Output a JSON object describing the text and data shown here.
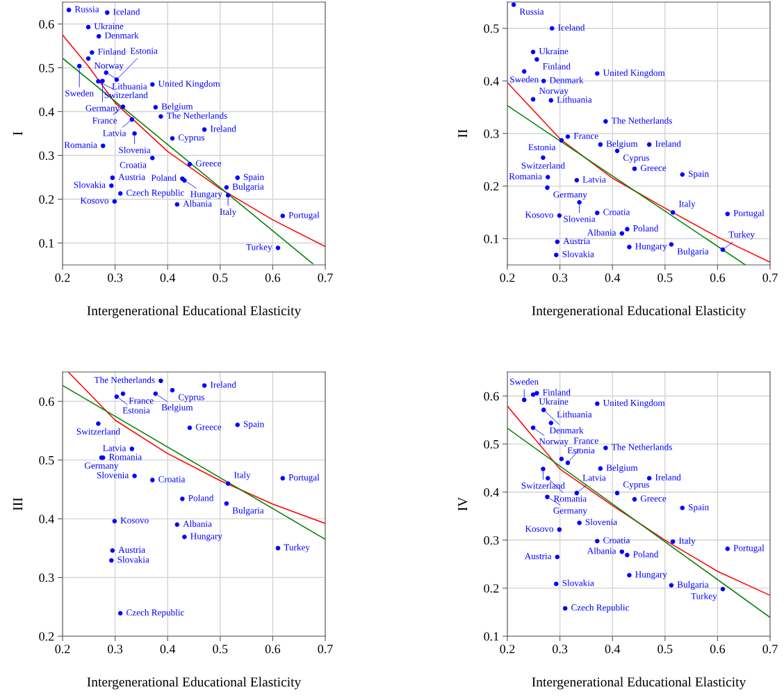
{
  "chart_data": [
    {
      "type": "scatter",
      "ylabel": "I",
      "xlabel": "Intergenerational Educational Elasticity",
      "xlim": [
        0.2,
        0.7
      ],
      "xticks": [
        0.2,
        0.3,
        0.4,
        0.5,
        0.6,
        0.7
      ],
      "ylim": [
        0.05,
        0.65
      ],
      "yticks": [
        0.1,
        0.2,
        0.3,
        0.4,
        0.5,
        0.6
      ],
      "grid": true,
      "series": [
        {
          "marker": "circle",
          "color": "#0000ff",
          "x": [
            0.212,
            0.285,
            0.249,
            0.269,
            0.256,
            0.249,
            0.232,
            0.283,
            0.268,
            0.276,
            0.303,
            0.371,
            0.315,
            0.377,
            0.387,
            0.332,
            0.47,
            0.337,
            0.409,
            0.277,
            0.371,
            0.442,
            0.295,
            0.293,
            0.31,
            0.299,
            0.428,
            0.432,
            0.418,
            0.533,
            0.512,
            0.515,
            0.619,
            0.61
          ],
          "values": [
            0.632,
            0.626,
            0.593,
            0.572,
            0.535,
            0.521,
            0.504,
            0.489,
            0.469,
            0.47,
            0.473,
            0.462,
            0.411,
            0.41,
            0.389,
            0.382,
            0.359,
            0.35,
            0.339,
            0.322,
            0.294,
            0.28,
            0.249,
            0.231,
            0.213,
            0.195,
            0.247,
            0.243,
            0.188,
            0.249,
            0.227,
            0.209,
            0.162,
            0.089
          ]
        },
        {
          "type": "line",
          "color": "#ff0000",
          "x": [
            0.2,
            0.25,
            0.3,
            0.4,
            0.5,
            0.6,
            0.7
          ],
          "values": [
            0.575,
            0.502,
            0.42,
            0.309,
            0.224,
            0.153,
            0.092
          ]
        },
        {
          "type": "line",
          "color": "#008000",
          "x": [
            0.2,
            0.676
          ],
          "values": [
            0.522,
            0.053
          ]
        }
      ],
      "annotations": [
        {
          "text": "Russia",
          "x": 0.212,
          "y": 0.632
        },
        {
          "text": "Iceland",
          "x": 0.285,
          "y": 0.626
        },
        {
          "text": "Ukraine",
          "x": 0.249,
          "y": 0.593
        },
        {
          "text": "Denmark",
          "x": 0.269,
          "y": 0.572
        },
        {
          "text": "Finland",
          "x": 0.256,
          "y": 0.535
        },
        {
          "text": "Norway",
          "x": 0.249,
          "y": 0.521
        },
        {
          "text": "Sweden",
          "x": 0.232,
          "y": 0.504
        },
        {
          "text": "Lithuania",
          "x": 0.283,
          "y": 0.489
        },
        {
          "text": "Switzerland",
          "x": 0.268,
          "y": 0.469
        },
        {
          "text": "Germany",
          "x": 0.276,
          "y": 0.47
        },
        {
          "text": "Estonia",
          "x": 0.303,
          "y": 0.473
        },
        {
          "text": "United Kingdom",
          "x": 0.371,
          "y": 0.462
        },
        {
          "text": "France",
          "x": 0.315,
          "y": 0.411
        },
        {
          "text": "Belgium",
          "x": 0.377,
          "y": 0.41
        },
        {
          "text": "The Netherlands",
          "x": 0.387,
          "y": 0.389
        },
        {
          "text": "Latvia",
          "x": 0.332,
          "y": 0.382
        },
        {
          "text": "Ireland",
          "x": 0.47,
          "y": 0.359
        },
        {
          "text": "Slovenia",
          "x": 0.337,
          "y": 0.35
        },
        {
          "text": "Cyprus",
          "x": 0.409,
          "y": 0.339
        },
        {
          "text": "Romania",
          "x": 0.277,
          "y": 0.322
        },
        {
          "text": "Croatia",
          "x": 0.371,
          "y": 0.294
        },
        {
          "text": "Greece",
          "x": 0.442,
          "y": 0.28
        },
        {
          "text": "Austria",
          "x": 0.295,
          "y": 0.249
        },
        {
          "text": "Slovakia",
          "x": 0.293,
          "y": 0.231
        },
        {
          "text": "Czech Republic",
          "x": 0.31,
          "y": 0.213
        },
        {
          "text": "Kosovo",
          "x": 0.299,
          "y": 0.195
        },
        {
          "text": "Poland",
          "x": 0.428,
          "y": 0.247
        },
        {
          "text": "Hungary",
          "x": 0.432,
          "y": 0.243
        },
        {
          "text": "Albania",
          "x": 0.418,
          "y": 0.188
        },
        {
          "text": "Spain",
          "x": 0.533,
          "y": 0.249
        },
        {
          "text": "Bulgaria",
          "x": 0.512,
          "y": 0.227
        },
        {
          "text": "Italy",
          "x": 0.515,
          "y": 0.209
        },
        {
          "text": "Portugal",
          "x": 0.619,
          "y": 0.162
        },
        {
          "text": "Turkey",
          "x": 0.61,
          "y": 0.089
        }
      ]
    },
    {
      "type": "scatter",
      "ylabel": "II",
      "xlabel": "Intergenerational Educational Elasticity",
      "xlim": [
        0.2,
        0.7
      ],
      "xticks": [
        0.2,
        0.3,
        0.4,
        0.5,
        0.6,
        0.7
      ],
      "ylim": [
        0.05,
        0.55
      ],
      "yticks": [
        0.1,
        0.2,
        0.3,
        0.4,
        0.5
      ],
      "grid": true,
      "series": [
        {
          "marker": "circle",
          "color": "#0000ff",
          "x": [
            0.212,
            0.285,
            0.249,
            0.256,
            0.232,
            0.371,
            0.269,
            0.249,
            0.283,
            0.387,
            0.315,
            0.303,
            0.377,
            0.47,
            0.409,
            0.268,
            0.442,
            0.533,
            0.277,
            0.332,
            0.276,
            0.337,
            0.515,
            0.619,
            0.299,
            0.371,
            0.428,
            0.418,
            0.295,
            0.432,
            0.512,
            0.61,
            0.293
          ],
          "values": [
            0.545,
            0.5,
            0.455,
            0.441,
            0.418,
            0.414,
            0.4,
            0.365,
            0.363,
            0.323,
            0.294,
            0.287,
            0.279,
            0.279,
            0.267,
            0.254,
            0.233,
            0.222,
            0.217,
            0.211,
            0.197,
            0.169,
            0.15,
            0.147,
            0.144,
            0.149,
            0.118,
            0.11,
            0.094,
            0.084,
            0.089,
            0.079,
            0.069
          ]
        },
        {
          "type": "line",
          "color": "#ff0000",
          "x": [
            0.2,
            0.3,
            0.4,
            0.5,
            0.6,
            0.7
          ],
          "values": [
            0.397,
            0.29,
            0.215,
            0.158,
            0.103,
            0.055
          ]
        },
        {
          "type": "line",
          "color": "#008000",
          "x": [
            0.2,
            0.653
          ],
          "values": [
            0.353,
            0.05
          ]
        }
      ],
      "annotations": [
        {
          "text": "Russia",
          "x": 0.212,
          "y": 0.545
        },
        {
          "text": "Iceland",
          "x": 0.285,
          "y": 0.5
        },
        {
          "text": "Ukraine",
          "x": 0.249,
          "y": 0.455
        },
        {
          "text": "Finland",
          "x": 0.256,
          "y": 0.441
        },
        {
          "text": "Sweden",
          "x": 0.232,
          "y": 0.418
        },
        {
          "text": "United Kingdom",
          "x": 0.371,
          "y": 0.414
        },
        {
          "text": "Denmark",
          "x": 0.269,
          "y": 0.4
        },
        {
          "text": "Norway",
          "x": 0.249,
          "y": 0.365
        },
        {
          "text": "Lithuania",
          "x": 0.283,
          "y": 0.363
        },
        {
          "text": "The Netherlands",
          "x": 0.387,
          "y": 0.323
        },
        {
          "text": "France",
          "x": 0.315,
          "y": 0.294
        },
        {
          "text": "Estonia",
          "x": 0.303,
          "y": 0.287
        },
        {
          "text": "Belgium",
          "x": 0.377,
          "y": 0.279
        },
        {
          "text": "Ireland",
          "x": 0.47,
          "y": 0.279
        },
        {
          "text": "Cyprus",
          "x": 0.409,
          "y": 0.267
        },
        {
          "text": "Switzerland",
          "x": 0.268,
          "y": 0.254
        },
        {
          "text": "Greece",
          "x": 0.442,
          "y": 0.233
        },
        {
          "text": "Spain",
          "x": 0.533,
          "y": 0.222
        },
        {
          "text": "Romania",
          "x": 0.277,
          "y": 0.217
        },
        {
          "text": "Latvia",
          "x": 0.332,
          "y": 0.211
        },
        {
          "text": "Germany",
          "x": 0.276,
          "y": 0.197
        },
        {
          "text": "Slovenia",
          "x": 0.337,
          "y": 0.169
        },
        {
          "text": "Italy",
          "x": 0.515,
          "y": 0.15
        },
        {
          "text": "Portugal",
          "x": 0.619,
          "y": 0.147
        },
        {
          "text": "Kosovo",
          "x": 0.299,
          "y": 0.144
        },
        {
          "text": "Croatia",
          "x": 0.371,
          "y": 0.149
        },
        {
          "text": "Poland",
          "x": 0.428,
          "y": 0.118
        },
        {
          "text": "Albania",
          "x": 0.418,
          "y": 0.11
        },
        {
          "text": "Austria",
          "x": 0.295,
          "y": 0.094
        },
        {
          "text": "Hungary",
          "x": 0.432,
          "y": 0.084
        },
        {
          "text": "Bulgaria",
          "x": 0.512,
          "y": 0.089
        },
        {
          "text": "Turkey",
          "x": 0.61,
          "y": 0.079
        },
        {
          "text": "Slovakia",
          "x": 0.293,
          "y": 0.069
        }
      ]
    },
    {
      "type": "scatter",
      "ylabel": "III",
      "xlabel": "Intergenerational Educational Elasticity",
      "xlim": [
        0.2,
        0.7
      ],
      "xticks": [
        0.2,
        0.3,
        0.4,
        0.5,
        0.6,
        0.7
      ],
      "ylim": [
        0.2,
        0.65
      ],
      "yticks": [
        0.2,
        0.3,
        0.4,
        0.5,
        0.6
      ],
      "grid": true,
      "series": [
        {
          "marker": "circle",
          "color": "#0000ff",
          "x": [
            0.387,
            0.47,
            0.409,
            0.315,
            0.377,
            0.303,
            0.268,
            0.442,
            0.533,
            0.332,
            0.277,
            0.274,
            0.337,
            0.371,
            0.515,
            0.619,
            0.428,
            0.512,
            0.299,
            0.418,
            0.432,
            0.295,
            0.293,
            0.61,
            0.31
          ],
          "values": [
            0.635,
            0.627,
            0.619,
            0.613,
            0.613,
            0.608,
            0.562,
            0.555,
            0.56,
            0.519,
            0.504,
            0.504,
            0.473,
            0.466,
            0.46,
            0.469,
            0.434,
            0.426,
            0.396,
            0.39,
            0.369,
            0.346,
            0.329,
            0.35,
            0.239
          ]
        },
        {
          "type": "line",
          "color": "#ff0000",
          "x": [
            0.211,
            0.3,
            0.4,
            0.5,
            0.6,
            0.7
          ],
          "values": [
            0.65,
            0.568,
            0.511,
            0.465,
            0.425,
            0.392
          ]
        },
        {
          "type": "line",
          "color": "#008000",
          "x": [
            0.2,
            0.7
          ],
          "values": [
            0.627,
            0.365
          ]
        }
      ],
      "annotations": [
        {
          "text": "The Netherlands",
          "x": 0.387,
          "y": 0.635
        },
        {
          "text": "Ireland",
          "x": 0.47,
          "y": 0.627
        },
        {
          "text": "Cyprus",
          "x": 0.409,
          "y": 0.619
        },
        {
          "text": "France",
          "x": 0.315,
          "y": 0.613
        },
        {
          "text": "Belgium",
          "x": 0.377,
          "y": 0.613
        },
        {
          "text": "Estonia",
          "x": 0.303,
          "y": 0.608
        },
        {
          "text": "Switzerland",
          "x": 0.268,
          "y": 0.562
        },
        {
          "text": "Greece",
          "x": 0.442,
          "y": 0.555
        },
        {
          "text": "Spain",
          "x": 0.533,
          "y": 0.56
        },
        {
          "text": "Latvia",
          "x": 0.332,
          "y": 0.519
        },
        {
          "text": "Romania",
          "x": 0.277,
          "y": 0.504
        },
        {
          "text": "Germany",
          "x": 0.274,
          "y": 0.504
        },
        {
          "text": "Slovenia",
          "x": 0.337,
          "y": 0.473
        },
        {
          "text": "Croatia",
          "x": 0.371,
          "y": 0.466
        },
        {
          "text": "Italy",
          "x": 0.515,
          "y": 0.46
        },
        {
          "text": "Portugal",
          "x": 0.619,
          "y": 0.469
        },
        {
          "text": "Poland",
          "x": 0.428,
          "y": 0.434
        },
        {
          "text": "Bulgaria",
          "x": 0.512,
          "y": 0.426
        },
        {
          "text": "Kosovo",
          "x": 0.299,
          "y": 0.396
        },
        {
          "text": "Albania",
          "x": 0.418,
          "y": 0.39
        },
        {
          "text": "Hungary",
          "x": 0.432,
          "y": 0.369
        },
        {
          "text": "Austria",
          "x": 0.295,
          "y": 0.346
        },
        {
          "text": "Slovakia",
          "x": 0.293,
          "y": 0.329
        },
        {
          "text": "Turkey",
          "x": 0.61,
          "y": 0.35
        },
        {
          "text": "Czech Republic",
          "x": 0.31,
          "y": 0.239
        }
      ]
    },
    {
      "type": "scatter",
      "ylabel": "IV",
      "xlabel": "Intergenerational Educational Elasticity",
      "xlim": [
        0.2,
        0.7
      ],
      "xticks": [
        0.2,
        0.3,
        0.4,
        0.5,
        0.6,
        0.7
      ],
      "ylim": [
        0.1,
        0.65
      ],
      "yticks": [
        0.1,
        0.2,
        0.3,
        0.4,
        0.5,
        0.6
      ],
      "grid": true,
      "series": [
        {
          "marker": "circle",
          "color": "#0000ff",
          "x": [
            0.256,
            0.249,
            0.232,
            0.371,
            0.269,
            0.283,
            0.249,
            0.387,
            0.303,
            0.315,
            0.268,
            0.377,
            0.277,
            0.47,
            0.276,
            0.332,
            0.409,
            0.442,
            0.533,
            0.337,
            0.299,
            0.371,
            0.515,
            0.418,
            0.428,
            0.619,
            0.295,
            0.432,
            0.293,
            0.512,
            0.61,
            0.31
          ],
          "values": [
            0.606,
            0.603,
            0.592,
            0.584,
            0.571,
            0.544,
            0.534,
            0.492,
            0.469,
            0.461,
            0.448,
            0.449,
            0.429,
            0.429,
            0.39,
            0.398,
            0.398,
            0.385,
            0.367,
            0.336,
            0.322,
            0.298,
            0.297,
            0.276,
            0.269,
            0.282,
            0.265,
            0.227,
            0.209,
            0.206,
            0.198,
            0.158
          ]
        },
        {
          "type": "line",
          "color": "#ff0000",
          "x": [
            0.2,
            0.3,
            0.4,
            0.5,
            0.6,
            0.7
          ],
          "values": [
            0.579,
            0.448,
            0.372,
            0.3,
            0.235,
            0.185
          ]
        },
        {
          "type": "line",
          "color": "#008000",
          "x": [
            0.2,
            0.7
          ],
          "values": [
            0.533,
            0.139
          ]
        }
      ],
      "annotations": [
        {
          "text": "Finland",
          "x": 0.256,
          "y": 0.606
        },
        {
          "text": "Ukraine",
          "x": 0.249,
          "y": 0.603
        },
        {
          "text": "Sweden",
          "x": 0.232,
          "y": 0.592
        },
        {
          "text": "United Kingdom",
          "x": 0.371,
          "y": 0.584
        },
        {
          "text": "Denmark",
          "x": 0.269,
          "y": 0.571
        },
        {
          "text": "Lithuania",
          "x": 0.283,
          "y": 0.544
        },
        {
          "text": "Norway",
          "x": 0.249,
          "y": 0.534
        },
        {
          "text": "The Netherlands",
          "x": 0.387,
          "y": 0.492
        },
        {
          "text": "Estonia",
          "x": 0.303,
          "y": 0.469
        },
        {
          "text": "France",
          "x": 0.315,
          "y": 0.461
        },
        {
          "text": "Switzerland",
          "x": 0.268,
          "y": 0.448
        },
        {
          "text": "Belgium",
          "x": 0.377,
          "y": 0.449
        },
        {
          "text": "Romania",
          "x": 0.277,
          "y": 0.429
        },
        {
          "text": "Ireland",
          "x": 0.47,
          "y": 0.429
        },
        {
          "text": "Germany",
          "x": 0.276,
          "y": 0.39
        },
        {
          "text": "Latvia",
          "x": 0.332,
          "y": 0.398
        },
        {
          "text": "Cyprus",
          "x": 0.409,
          "y": 0.398
        },
        {
          "text": "Greece",
          "x": 0.442,
          "y": 0.385
        },
        {
          "text": "Spain",
          "x": 0.533,
          "y": 0.367
        },
        {
          "text": "Slovenia",
          "x": 0.337,
          "y": 0.336
        },
        {
          "text": "Kosovo",
          "x": 0.299,
          "y": 0.322
        },
        {
          "text": "Croatia",
          "x": 0.371,
          "y": 0.298
        },
        {
          "text": "Italy",
          "x": 0.515,
          "y": 0.297
        },
        {
          "text": "Albania",
          "x": 0.418,
          "y": 0.276
        },
        {
          "text": "Poland",
          "x": 0.428,
          "y": 0.269
        },
        {
          "text": "Portugal",
          "x": 0.619,
          "y": 0.282
        },
        {
          "text": "Austria",
          "x": 0.295,
          "y": 0.265
        },
        {
          "text": "Hungary",
          "x": 0.432,
          "y": 0.227
        },
        {
          "text": "Slovakia",
          "x": 0.293,
          "y": 0.209
        },
        {
          "text": "Bulgaria",
          "x": 0.512,
          "y": 0.206
        },
        {
          "text": "Turkey",
          "x": 0.61,
          "y": 0.198
        },
        {
          "text": "Czech Republic",
          "x": 0.31,
          "y": 0.158
        }
      ]
    }
  ]
}
